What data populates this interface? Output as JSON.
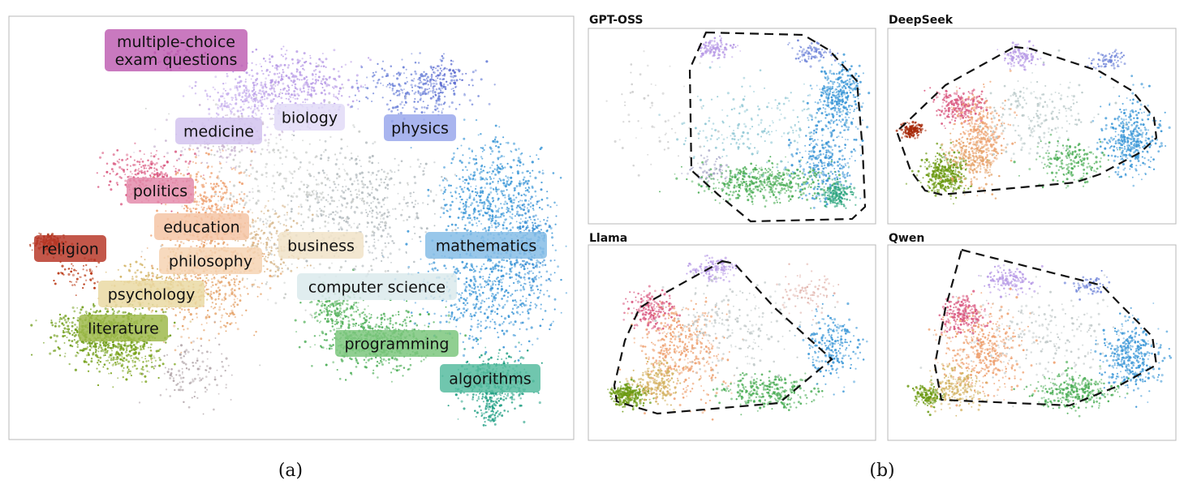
{
  "panel_a": {
    "caption": "(a)",
    "clusters": [
      {
        "name": "multiple-choice-exam-questions",
        "lines": [
          "multiple-choice",
          "exam questions"
        ],
        "color": "#bf62b4"
      },
      {
        "name": "medicine",
        "lines": [
          "medicine"
        ],
        "color": "#d2c3ee"
      },
      {
        "name": "biology",
        "lines": [
          "biology"
        ],
        "color": "#e2daf7"
      },
      {
        "name": "physics",
        "lines": [
          "physics"
        ],
        "color": "#9aa8ec"
      },
      {
        "name": "politics",
        "lines": [
          "politics"
        ],
        "color": "#e48cab"
      },
      {
        "name": "education",
        "lines": [
          "education"
        ],
        "color": "#f4c4a4"
      },
      {
        "name": "religion",
        "lines": [
          "religion"
        ],
        "color": "#b9392a"
      },
      {
        "name": "philosophy",
        "lines": [
          "philosophy"
        ],
        "color": "#f6d3b3"
      },
      {
        "name": "business",
        "lines": [
          "business"
        ],
        "color": "#f1e3c8"
      },
      {
        "name": "mathematics",
        "lines": [
          "mathematics"
        ],
        "color": "#86bde6"
      },
      {
        "name": "computer-science",
        "lines": [
          "computer science"
        ],
        "color": "#dbeaec"
      },
      {
        "name": "psychology",
        "lines": [
          "psychology"
        ],
        "color": "#ead9a3"
      },
      {
        "name": "literature",
        "lines": [
          "literature"
        ],
        "color": "#9fba4c"
      },
      {
        "name": "programming",
        "lines": [
          "programming"
        ],
        "color": "#7dc77e"
      },
      {
        "name": "algorithms",
        "lines": [
          "algorithms"
        ],
        "color": "#57bca0"
      }
    ]
  },
  "panel_b": {
    "caption": "(b)",
    "models": [
      {
        "name": "GPT-OSS"
      },
      {
        "name": "DeepSeek"
      },
      {
        "name": "Llama"
      },
      {
        "name": "Qwen"
      }
    ]
  }
}
